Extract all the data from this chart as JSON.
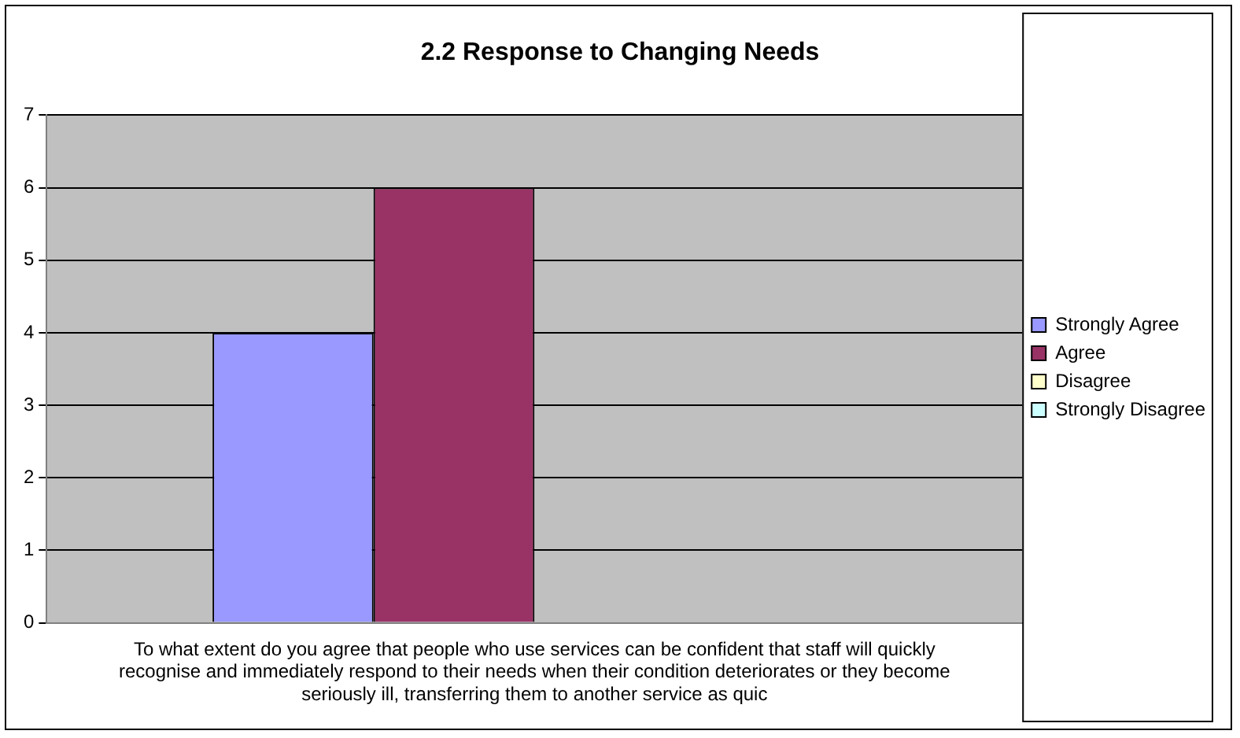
{
  "chart_data": {
    "type": "bar",
    "title": "2.2 Response to Changing Needs",
    "categories": [
      "To what extent do you agree that people who use services can be confident that staff will quickly recognise and immediately respond to their needs when their condition deteriorates or they become seriously ill, transferring them to another service as quic"
    ],
    "series": [
      {
        "name": "Strongly Agree",
        "color": "#9999ff",
        "values": [
          4
        ]
      },
      {
        "name": "Agree",
        "color": "#993366",
        "values": [
          6
        ]
      },
      {
        "name": "Disagree",
        "color": "#ffffcc",
        "values": [
          0
        ]
      },
      {
        "name": "Strongly Disagree",
        "color": "#ccffff",
        "values": [
          0
        ]
      }
    ],
    "ylim": [
      0,
      7
    ],
    "yticks": [
      0,
      1,
      2,
      3,
      4,
      5,
      6,
      7
    ],
    "grid": "y",
    "legend": "right"
  }
}
